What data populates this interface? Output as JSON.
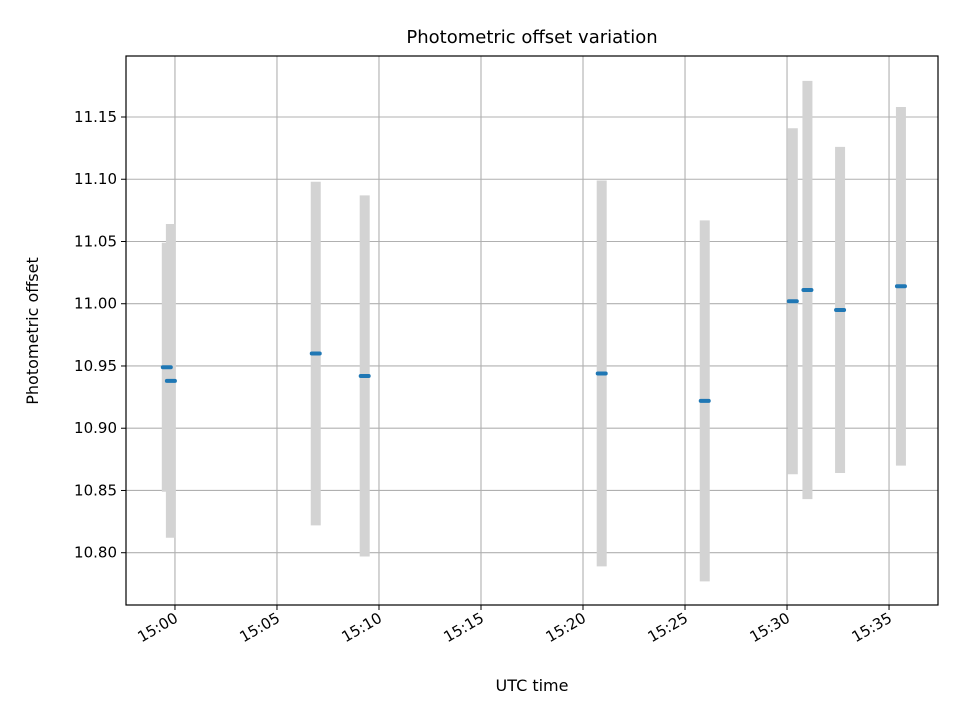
{
  "chart_data": {
    "type": "scatter",
    "title": "Photometric offset variation",
    "xlabel": "UTC time",
    "ylabel": "Photometric offset",
    "x_ticks": [
      "15:00",
      "15:05",
      "15:10",
      "15:15",
      "15:20",
      "15:25",
      "15:30",
      "15:35"
    ],
    "y_ticks": [
      "10.80",
      "10.85",
      "10.90",
      "10.95",
      "11.00",
      "11.05",
      "11.10",
      "11.15"
    ],
    "xlim": [
      "14:57:36",
      "15:37:24"
    ],
    "ylim": [
      10.758,
      11.199
    ],
    "grid": true,
    "colors": {
      "points": "#1f77b4",
      "error_bars": "#d3d3d3",
      "grid": "#b0b0b0"
    },
    "series": [
      {
        "points": [
          {
            "x": "14:59:36",
            "y": 10.949,
            "err": 0.1
          },
          {
            "x": "14:59:48",
            "y": 10.938,
            "err": 0.126
          },
          {
            "x": "15:06:54",
            "y": 10.96,
            "err": 0.138
          },
          {
            "x": "15:09:18",
            "y": 10.942,
            "err": 0.145
          },
          {
            "x": "15:20:55",
            "y": 10.944,
            "err": 0.155
          },
          {
            "x": "15:25:58",
            "y": 10.922,
            "err": 0.145
          },
          {
            "x": "15:30:17",
            "y": 11.002,
            "err": 0.139
          },
          {
            "x": "15:31:00",
            "y": 11.011,
            "err": 0.168
          },
          {
            "x": "15:32:36",
            "y": 10.995,
            "err": 0.131
          },
          {
            "x": "15:35:35",
            "y": 11.014,
            "err": 0.144
          }
        ]
      }
    ]
  }
}
